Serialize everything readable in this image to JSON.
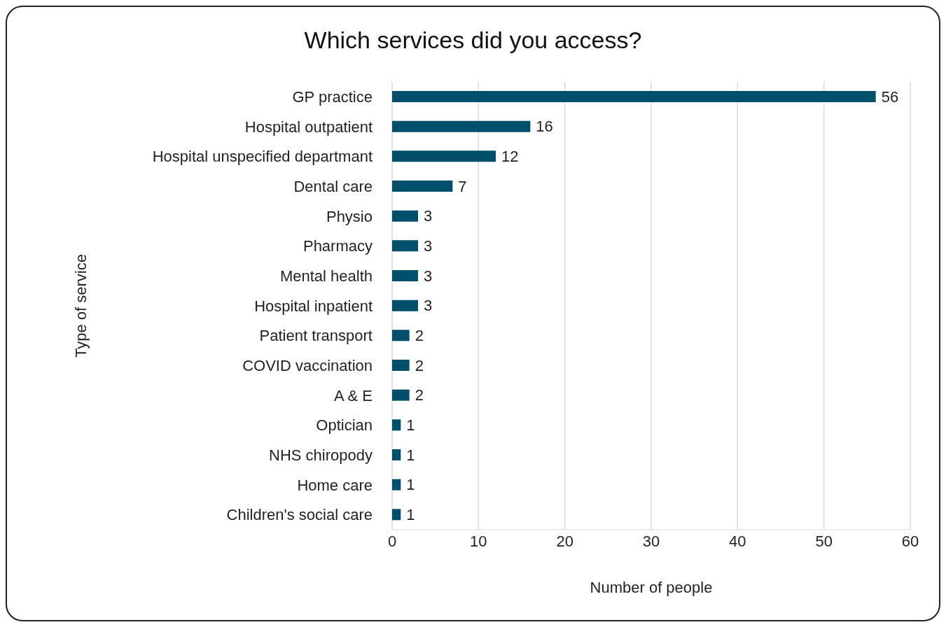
{
  "chart_data": {
    "type": "bar",
    "orientation": "horizontal",
    "title": "Which services did you access?",
    "xlabel": "Number of people",
    "ylabel": "Type of service",
    "categories": [
      "GP practice",
      "Hospital outpatient",
      "Hospital unspecified departmant",
      "Dental care",
      "Physio",
      "Pharmacy",
      "Mental health",
      "Hospital inpatient",
      "Patient transport",
      "COVID vaccination",
      "A & E",
      "Optician",
      "NHS chiropody",
      "Home care",
      "Children's social care"
    ],
    "values": [
      56,
      16,
      12,
      7,
      3,
      3,
      3,
      3,
      2,
      2,
      2,
      1,
      1,
      1,
      1
    ],
    "color": "#00506b",
    "xlim": [
      0,
      60
    ],
    "xticks": [
      0,
      10,
      20,
      30,
      40,
      50,
      60
    ],
    "grid": "x",
    "data_labels": true
  }
}
